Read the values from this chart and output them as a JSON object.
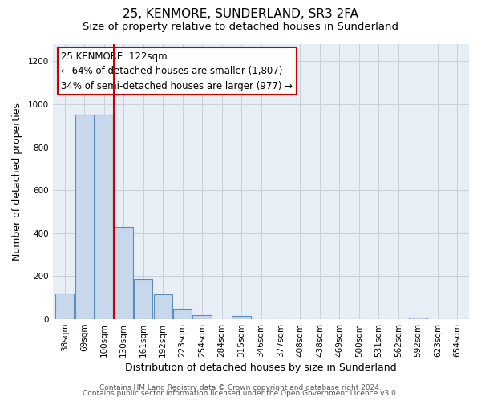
{
  "title": "25, KENMORE, SUNDERLAND, SR3 2FA",
  "subtitle": "Size of property relative to detached houses in Sunderland",
  "xlabel": "Distribution of detached houses by size in Sunderland",
  "ylabel": "Number of detached properties",
  "categories": [
    "38sqm",
    "69sqm",
    "100sqm",
    "130sqm",
    "161sqm",
    "192sqm",
    "223sqm",
    "254sqm",
    "284sqm",
    "315sqm",
    "346sqm",
    "377sqm",
    "408sqm",
    "438sqm",
    "469sqm",
    "500sqm",
    "531sqm",
    "562sqm",
    "592sqm",
    "623sqm",
    "654sqm"
  ],
  "values": [
    120,
    950,
    950,
    430,
    185,
    115,
    48,
    18,
    0,
    15,
    0,
    0,
    0,
    0,
    0,
    0,
    0,
    0,
    8,
    0,
    0
  ],
  "bar_color": "#c8d8ec",
  "bar_edge_color": "#5b8db8",
  "vline_x_idx": 3,
  "vline_color": "#cc0000",
  "annotation_title": "25 KENMORE: 122sqm",
  "annotation_line1": "← 64% of detached houses are smaller (1,807)",
  "annotation_line2": "34% of semi-detached houses are larger (977) →",
  "annotation_box_color": "#ffffff",
  "annotation_box_edge": "#cc0000",
  "ylim": [
    0,
    1280
  ],
  "yticks": [
    0,
    200,
    400,
    600,
    800,
    1000,
    1200
  ],
  "footer1": "Contains HM Land Registry data © Crown copyright and database right 2024.",
  "footer2": "Contains public sector information licensed under the Open Government Licence v3.0.",
  "bg_color": "#ffffff",
  "plot_bg_color": "#e8eef5",
  "grid_color": "#c8d0dc",
  "title_fontsize": 11,
  "subtitle_fontsize": 9.5,
  "axis_label_fontsize": 9,
  "tick_fontsize": 7.5,
  "annotation_fontsize": 8.5,
  "footer_fontsize": 6.5
}
